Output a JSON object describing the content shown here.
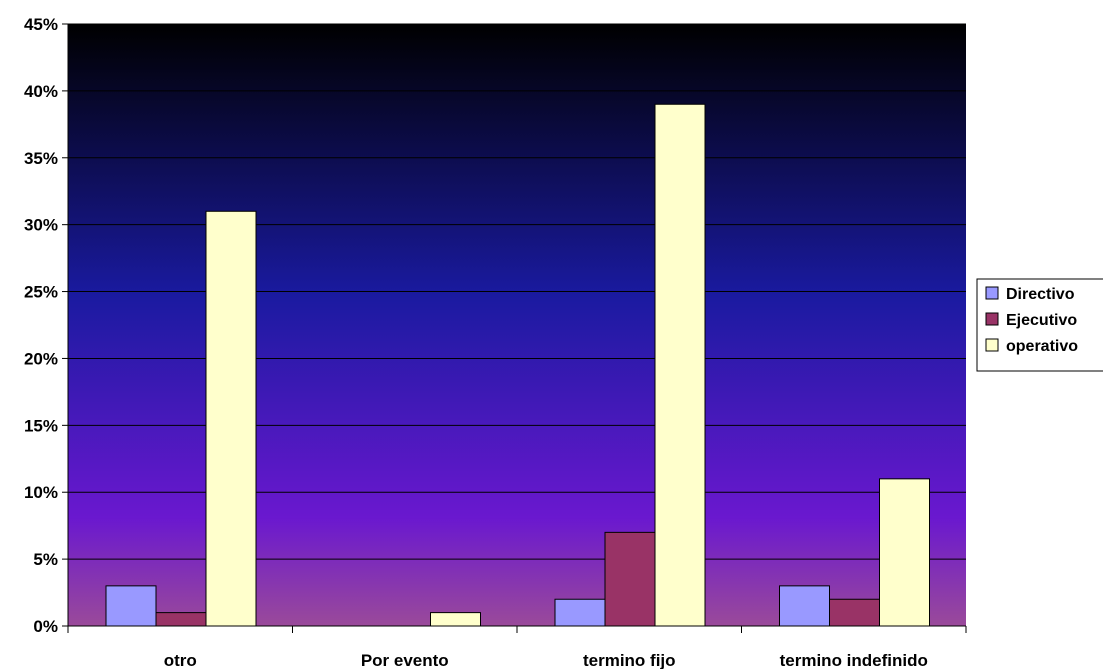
{
  "chart_data": {
    "type": "bar",
    "title": "",
    "xlabel": "",
    "ylabel": "",
    "categories": [
      "otro",
      "Por evento",
      "termino fijo",
      "termino indefinido"
    ],
    "series": [
      {
        "name": "Directivo",
        "values": [
          3,
          0,
          2,
          3
        ],
        "color": "#9999ff"
      },
      {
        "name": "Ejecutivo",
        "values": [
          1,
          0,
          7,
          2
        ],
        "color": "#993366"
      },
      {
        "name": "operativo",
        "values": [
          31,
          1,
          39,
          11
        ],
        "color": "#ffffcc"
      }
    ],
    "ylim": [
      0,
      45
    ],
    "yticks": [
      "0%",
      "5%",
      "10%",
      "15%",
      "20%",
      "25%",
      "30%",
      "35%",
      "40%",
      "45%"
    ],
    "ytick_values": [
      0,
      5,
      10,
      15,
      20,
      25,
      30,
      35,
      40,
      45
    ],
    "grid": true,
    "legend_position": "right",
    "background_gradient": [
      "#000000",
      "#1a1aa0",
      "#6a18cf",
      "#9a4a9a"
    ]
  }
}
